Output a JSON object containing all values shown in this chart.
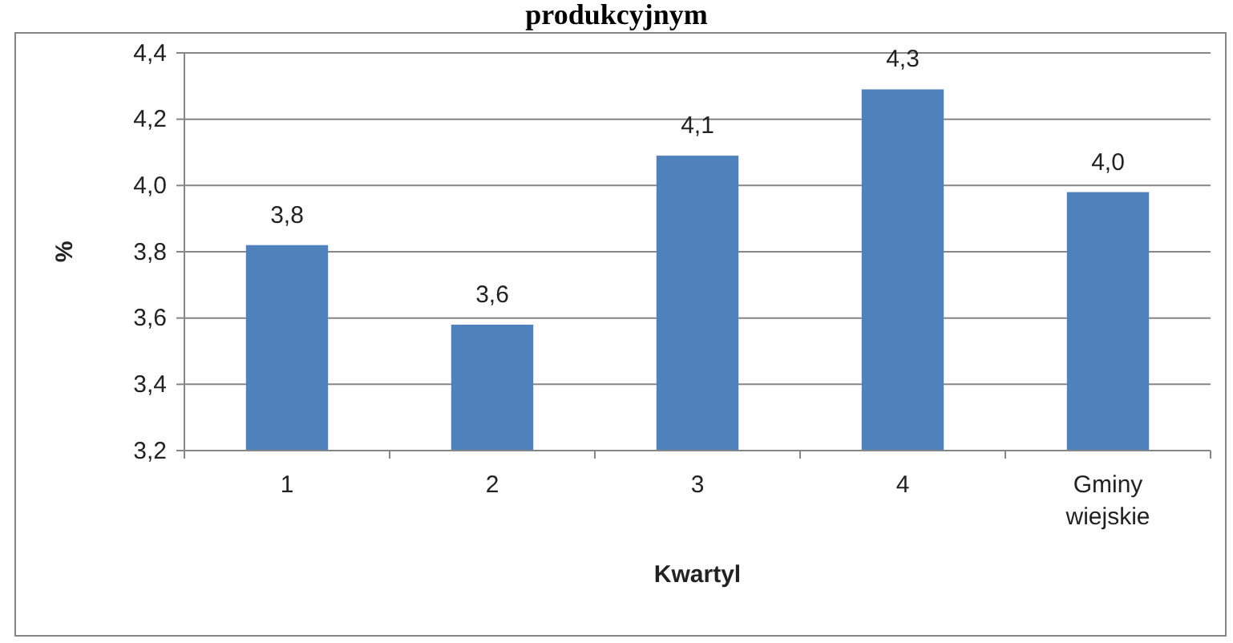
{
  "chart_data": {
    "type": "bar",
    "title": "produkcyjnym",
    "xlabel": "Kwartyl",
    "ylabel": "%",
    "categories": [
      "1",
      "2",
      "3",
      "4",
      "Gminy wiejskie"
    ],
    "values": [
      3.82,
      3.58,
      4.09,
      4.29,
      3.98
    ],
    "value_labels": [
      "3,8",
      "3,6",
      "4,1",
      "4,3",
      "4,0"
    ],
    "color": "#4f81bd",
    "ylim": [
      3.2,
      4.4
    ],
    "yticks": [
      {
        "value": 3.2,
        "label": "3,2"
      },
      {
        "value": 3.4,
        "label": "3,4"
      },
      {
        "value": 3.6,
        "label": "3,6"
      },
      {
        "value": 3.8,
        "label": "3,8"
      },
      {
        "value": 4.0,
        "label": "4,0"
      },
      {
        "value": 4.2,
        "label": "4,2"
      },
      {
        "value": 4.4,
        "label": "4,4"
      }
    ],
    "grid": "y"
  }
}
